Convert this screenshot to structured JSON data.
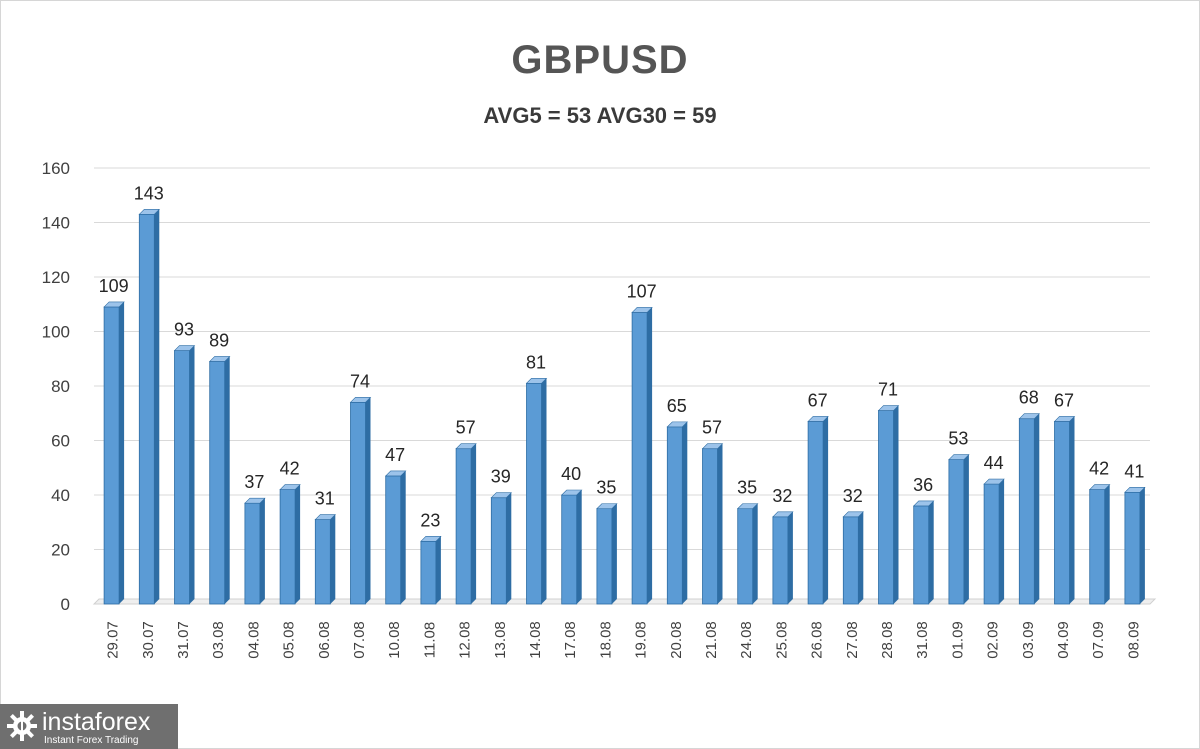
{
  "chart_data": {
    "type": "bar",
    "title": "GBPUSD",
    "subtitle": "AVG5 = 53 AVG30 = 59",
    "categories": [
      "29.07",
      "30.07",
      "31.07",
      "03.08",
      "04.08",
      "05.08",
      "06.08",
      "07.08",
      "10.08",
      "11.08",
      "12.08",
      "13.08",
      "14.08",
      "17.08",
      "18.08",
      "19.08",
      "20.08",
      "21.08",
      "24.08",
      "25.08",
      "26.08",
      "27.08",
      "28.08",
      "31.08",
      "01.09",
      "02.09",
      "03.09",
      "04.09",
      "07.09",
      "08.09"
    ],
    "values": [
      109,
      143,
      93,
      89,
      37,
      42,
      31,
      74,
      47,
      23,
      57,
      39,
      81,
      40,
      35,
      107,
      65,
      57,
      35,
      32,
      67,
      32,
      71,
      36,
      53,
      44,
      68,
      67,
      42,
      41
    ],
    "ylim": [
      0,
      160
    ],
    "yticks": [
      0,
      20,
      40,
      60,
      80,
      100,
      120,
      140,
      160
    ],
    "grid": true,
    "bar_color": "#5b9bd5",
    "bar_edge_color": "#2e6da4"
  },
  "watermark": {
    "name": "instaforex",
    "tagline": "Instant Forex Trading"
  }
}
